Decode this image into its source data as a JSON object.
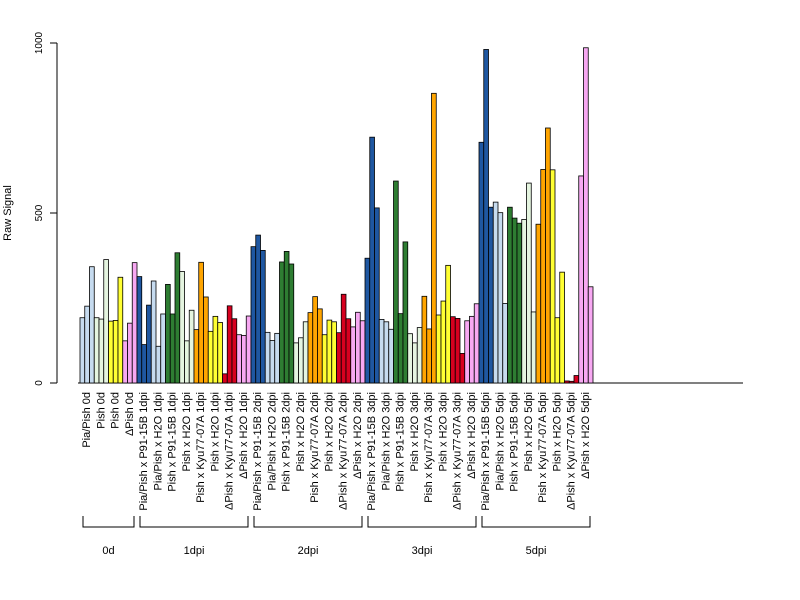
{
  "chart_data": {
    "type": "bar",
    "ylabel": "Raw Signal",
    "ylim": [
      0,
      1000
    ],
    "yticks": [
      "0",
      "500",
      "1000"
    ],
    "grid": false,
    "categories": [
      {
        "label": "Pia/Pish 0d",
        "values": [
          192,
          226,
          342
        ],
        "colors": [
          "#c6dbef",
          "#c6dbef",
          "#c6dbef"
        ]
      },
      {
        "label": "Pish 0d",
        "values": [
          192,
          188,
          363
        ],
        "colors": [
          "#e5f5e0",
          "#e5f5e0",
          "#e5f5e0"
        ]
      },
      {
        "label": "Pish 0d",
        "values": [
          182,
          184,
          311
        ],
        "colors": [
          "#ffff33",
          "#ffff33",
          "#ffff33"
        ]
      },
      {
        "label": "ΔPish 0d",
        "values": [
          124,
          176,
          354
        ],
        "colors": [
          "#f7a8f2",
          "#f7a8f2",
          "#f7a8f2"
        ]
      },
      {
        "label": "Pia/Pish x P91-15B 1dpi",
        "values": [
          313,
          113,
          229
        ],
        "colors": [
          "#1f57a1",
          "#1f57a1",
          "#1f57a1"
        ]
      },
      {
        "label": "Pia/Pish x H2O 1dpi",
        "values": [
          300,
          108,
          203
        ],
        "colors": [
          "#c6dbef",
          "#c6dbef",
          "#c6dbef"
        ]
      },
      {
        "label": "Pish x P91-15B 1dpi",
        "values": [
          290,
          203,
          383
        ],
        "colors": [
          "#2e7d32",
          "#2e7d32",
          "#2e7d32"
        ]
      },
      {
        "label": "Pish x H2O 1dpi",
        "values": [
          328,
          124,
          214
        ],
        "colors": [
          "#e5f5e0",
          "#e5f5e0",
          "#e5f5e0"
        ]
      },
      {
        "label": "Pish x Kyu77-07A 1dpi",
        "values": [
          157,
          355,
          253
        ],
        "colors": [
          "#ffa500",
          "#ffa500",
          "#ffa500"
        ]
      },
      {
        "label": "Pish x H2O 1dpi",
        "values": [
          152,
          196,
          178
        ],
        "colors": [
          "#ffff33",
          "#ffff33",
          "#ffff33"
        ]
      },
      {
        "label": "ΔPish x Kyu77-07A 1dpi",
        "values": [
          27,
          227,
          189
        ],
        "colors": [
          "#d7001f",
          "#d7001f",
          "#d7001f"
        ]
      },
      {
        "label": "ΔPish x H2O 1dpi",
        "values": [
          142,
          140,
          197
        ],
        "colors": [
          "#f7a8f2",
          "#f7a8f2",
          "#f7a8f2"
        ]
      },
      {
        "label": "Pia/Pish x P91-15B 2dpi",
        "values": [
          401,
          435,
          390
        ],
        "colors": [
          "#1f57a1",
          "#1f57a1",
          "#1f57a1"
        ]
      },
      {
        "label": "Pia/Pish x H2O 2dpi",
        "values": [
          149,
          125,
          146
        ],
        "colors": [
          "#c6dbef",
          "#c6dbef",
          "#c6dbef"
        ]
      },
      {
        "label": "Pish x P91-15B 2dpi",
        "values": [
          356,
          387,
          350
        ],
        "colors": [
          "#2e7d32",
          "#2e7d32",
          "#2e7d32"
        ]
      },
      {
        "label": "Pish x H2O 2dpi",
        "values": [
          118,
          133,
          180
        ],
        "colors": [
          "#e5f5e0",
          "#e5f5e0",
          "#e5f5e0"
        ]
      },
      {
        "label": "Pish x Kyu77-07A 2dpi",
        "values": [
          207,
          254,
          218
        ],
        "colors": [
          "#ffa500",
          "#ffa500",
          "#ffa500"
        ]
      },
      {
        "label": "Pish x H2O 2dpi",
        "values": [
          142,
          185,
          180
        ],
        "colors": [
          "#ffff33",
          "#ffff33",
          "#ffff33"
        ]
      },
      {
        "label": "ΔPish x Kyu77-07A 2dpi",
        "values": [
          148,
          261,
          189
        ],
        "colors": [
          "#d7001f",
          "#d7001f",
          "#d7001f"
        ]
      },
      {
        "label": "ΔPish x H2O 2dpi",
        "values": [
          165,
          208,
          183
        ],
        "colors": [
          "#f7a8f2",
          "#f7a8f2",
          "#f7a8f2"
        ]
      },
      {
        "label": "Pia/Pish x P91-15B 3dpi",
        "values": [
          367,
          723,
          515
        ],
        "colors": [
          "#1f57a1",
          "#1f57a1",
          "#1f57a1"
        ]
      },
      {
        "label": "Pia/Pish x H2O 3dpi",
        "values": [
          187,
          180,
          158
        ],
        "colors": [
          "#c6dbef",
          "#c6dbef",
          "#c6dbef"
        ]
      },
      {
        "label": "Pish x P91-15B 3dpi",
        "values": [
          594,
          204,
          415
        ],
        "colors": [
          "#2e7d32",
          "#2e7d32",
          "#2e7d32"
        ]
      },
      {
        "label": "Pish x H2O 3dpi",
        "values": [
          145,
          118,
          163
        ],
        "colors": [
          "#e5f5e0",
          "#e5f5e0",
          "#e5f5e0"
        ]
      },
      {
        "label": "Pish x Kyu77-07A 3dpi",
        "values": [
          255,
          159,
          852
        ],
        "colors": [
          "#ffa500",
          "#ffa500",
          "#ffa500"
        ]
      },
      {
        "label": "Pish x H2O 3dpi",
        "values": [
          200,
          241,
          346
        ],
        "colors": [
          "#ffff33",
          "#ffff33",
          "#ffff33"
        ]
      },
      {
        "label": "ΔPish x Kyu77-07A 3dpi",
        "values": [
          195,
          190,
          87
        ],
        "colors": [
          "#d7001f",
          "#d7001f",
          "#d7001f"
        ]
      },
      {
        "label": "ΔPish x H2O 3dpi",
        "values": [
          183,
          196,
          233
        ],
        "colors": [
          "#f7a8f2",
          "#f7a8f2",
          "#f7a8f2"
        ]
      },
      {
        "label": "Pia/Pish x P91-15B 5dpi",
        "values": [
          708,
          981,
          517
        ],
        "colors": [
          "#1f57a1",
          "#1f57a1",
          "#1f57a1"
        ]
      },
      {
        "label": "Pia/Pish x H2O 5dpi",
        "values": [
          532,
          501,
          234
        ],
        "colors": [
          "#c6dbef",
          "#c6dbef",
          "#c6dbef"
        ]
      },
      {
        "label": "Pish x P91-15B 5dpi",
        "values": [
          517,
          485,
          470
        ],
        "colors": [
          "#2e7d32",
          "#2e7d32",
          "#2e7d32"
        ]
      },
      {
        "label": "Pish x H2O 5dpi",
        "values": [
          481,
          588,
          209
        ],
        "colors": [
          "#e5f5e0",
          "#e5f5e0",
          "#e5f5e0"
        ]
      },
      {
        "label": "Pish x Kyu77-07A 5dpi",
        "values": [
          467,
          628,
          750
        ],
        "colors": [
          "#ffa500",
          "#ffa500",
          "#ffa500"
        ]
      },
      {
        "label": "Pish x H2O 5dpi",
        "values": [
          627,
          192,
          326
        ],
        "colors": [
          "#ffff33",
          "#ffff33",
          "#ffff33"
        ]
      },
      {
        "label": "ΔPish x Kyu77-07A 5dpi",
        "values": [
          6,
          5,
          22
        ],
        "colors": [
          "#d7001f",
          "#d7001f",
          "#d7001f"
        ]
      },
      {
        "label": "ΔPish x H2O 5dpi",
        "values": [
          609,
          986,
          283
        ],
        "colors": [
          "#f7a8f2",
          "#f7a8f2",
          "#f7a8f2"
        ]
      }
    ],
    "groups": [
      {
        "label": "0d",
        "start": 0,
        "end": 3
      },
      {
        "label": "1dpi",
        "start": 4,
        "end": 11
      },
      {
        "label": "2dpi",
        "start": 12,
        "end": 19
      },
      {
        "label": "3dpi",
        "start": 20,
        "end": 27
      },
      {
        "label": "5dpi",
        "start": 28,
        "end": 35
      }
    ]
  }
}
